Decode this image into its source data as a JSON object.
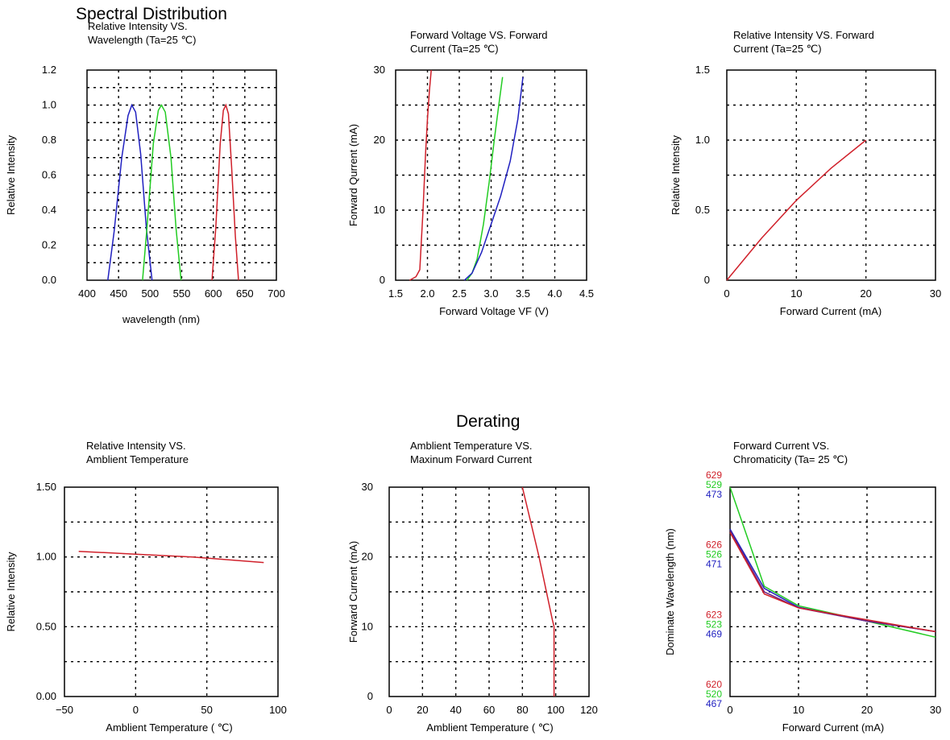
{
  "sections": {
    "spectral": "Spectral Distribution",
    "derating": "Derating"
  },
  "colors": {
    "red": "#d0202a",
    "green": "#22cc22",
    "blue": "#2020c0",
    "purple": "#6a2080",
    "axis": "#000000"
  },
  "chart_data": [
    {
      "type": "line",
      "title_lines": [
        "Relative Intensity VS.",
        "Wavelength (Ta=25 ℃)"
      ],
      "xlabel": "wavelength (nm)",
      "ylabel": "Relative Intensity",
      "xlim": [
        400,
        700
      ],
      "ylim": [
        0,
        1.2
      ],
      "xticks": [
        400,
        450,
        500,
        550,
        600,
        650,
        700
      ],
      "xtick_labels": [
        "400",
        "450",
        "500",
        "550",
        "600",
        "650",
        "700"
      ],
      "yticks": [
        0,
        0.2,
        0.4,
        0.6,
        0.8,
        1.0,
        1.2
      ],
      "ytick_labels": [
        "0.0",
        "0.2",
        "0.4",
        "0.6",
        "0.8",
        "1.0",
        "1.2"
      ],
      "grid": true,
      "series": [
        {
          "color": "blue",
          "x": [
            433,
            443,
            455,
            465,
            471,
            477,
            485,
            494,
            503
          ],
          "y": [
            0,
            0.28,
            0.7,
            0.94,
            1.0,
            0.96,
            0.72,
            0.3,
            0
          ]
        },
        {
          "color": "green",
          "x": [
            488,
            495,
            505,
            513,
            518,
            524,
            533,
            541,
            549
          ],
          "y": [
            0,
            0.3,
            0.78,
            0.97,
            1.0,
            0.96,
            0.7,
            0.3,
            0
          ]
        },
        {
          "color": "red",
          "x": [
            598,
            604,
            611,
            616,
            620,
            624,
            629,
            635,
            640
          ],
          "y": [
            0,
            0.3,
            0.78,
            0.97,
            1.0,
            0.95,
            0.65,
            0.25,
            0
          ]
        }
      ]
    },
    {
      "type": "line",
      "title_lines": [
        "Forward Voltage VS. Forward",
        "Current (Ta=25 ℃)"
      ],
      "xlabel": "Forward Voltage VF (V)",
      "ylabel": "Forward Qurrent (mA)",
      "xlim": [
        1.5,
        4.5
      ],
      "ylim": [
        0,
        30
      ],
      "xticks": [
        1.5,
        2.0,
        2.5,
        3.0,
        3.5,
        4.0,
        4.5
      ],
      "xtick_labels": [
        "1.5",
        "2.0",
        "2.5",
        "3.0",
        "3.5",
        "4.0",
        "4.5"
      ],
      "yticks": [
        0,
        10,
        20,
        30
      ],
      "ytick_labels": [
        "0",
        "10",
        "20",
        "30"
      ],
      "grid": true,
      "series": [
        {
          "color": "red",
          "x": [
            1.72,
            1.82,
            1.88,
            1.93,
            1.97,
            2.0,
            2.03,
            2.06
          ],
          "y": [
            0,
            0.5,
            1.5,
            10,
            18,
            23,
            27,
            30
          ]
        },
        {
          "color": "green",
          "x": [
            2.62,
            2.7,
            2.78,
            2.88,
            2.97,
            3.05,
            3.12,
            3.18
          ],
          "y": [
            0,
            1,
            3,
            8,
            14,
            20,
            25,
            29
          ]
        },
        {
          "color": "blue",
          "x": [
            2.58,
            2.7,
            2.85,
            3.0,
            3.15,
            3.3,
            3.42,
            3.5
          ],
          "y": [
            0,
            1,
            4,
            8,
            12,
            17,
            23,
            29
          ]
        }
      ]
    },
    {
      "type": "line",
      "title_lines": [
        "Relative Intensity VS. Forward",
        "Current (Ta=25 ℃)"
      ],
      "xlabel": "Forward Current (mA)",
      "ylabel": "Relative Intensity",
      "xlim": [
        0,
        30
      ],
      "ylim": [
        0,
        1.5
      ],
      "xticks": [
        0,
        10,
        20,
        30
      ],
      "xtick_labels": [
        "0",
        "10",
        "20",
        "30"
      ],
      "yticks": [
        0,
        0.5,
        1.0,
        1.5
      ],
      "ytick_labels": [
        "0",
        "0.5",
        "1.0",
        "1.5"
      ],
      "grid": true,
      "series": [
        {
          "color": "red",
          "x": [
            0,
            5,
            10,
            15,
            20
          ],
          "y": [
            0,
            0.3,
            0.57,
            0.8,
            1.0
          ]
        }
      ]
    },
    {
      "type": "line",
      "title_lines": [
        "Relative Intensity VS.",
        "Amblient Temperature"
      ],
      "xlabel": "Amblient Temperature ( ℃)",
      "ylabel": "Relative Intensity",
      "xlim": [
        -50,
        100
      ],
      "ylim": [
        0,
        1.5
      ],
      "xticks": [
        -50,
        0,
        50,
        100
      ],
      "xtick_labels": [
        "−50",
        "0",
        "50",
        "100"
      ],
      "yticks": [
        0,
        0.5,
        1.0,
        1.5
      ],
      "ytick_labels": [
        "0.00",
        "0.50",
        "1.00",
        "1.50"
      ],
      "grid": true,
      "series": [
        {
          "color": "red",
          "x": [
            -40,
            0,
            40,
            90
          ],
          "y": [
            1.04,
            1.02,
            1.0,
            0.96
          ]
        }
      ]
    },
    {
      "type": "line",
      "title_lines": [
        "Amblient Temperature VS.",
        "Maxinum Forward Current"
      ],
      "xlabel": "Amblient Temperature ( ℃)",
      "ylabel": "Forward Current (mA)",
      "xlim": [
        0,
        120
      ],
      "ylim": [
        0,
        30
      ],
      "xticks": [
        0,
        20,
        40,
        60,
        80,
        100,
        120
      ],
      "xtick_labels": [
        "0",
        "20",
        "40",
        "60",
        "80",
        "100",
        "120"
      ],
      "yticks": [
        0,
        10,
        20,
        30
      ],
      "ytick_labels": [
        "0",
        "10",
        "20",
        "30"
      ],
      "grid": true,
      "series": [
        {
          "color": "red",
          "x": [
            80,
            90,
            98,
            99,
            99
          ],
          "y": [
            30,
            20,
            11,
            10,
            0
          ]
        }
      ]
    },
    {
      "type": "line",
      "title_lines": [
        "Forward Current VS.",
        "Chromaticity (Ta= 25 ℃)"
      ],
      "xlabel": "Forward Current (mA)",
      "ylabel": "Dominate Wavelength (nm)",
      "xlim": [
        0,
        30
      ],
      "ylim": [
        0,
        3
      ],
      "xticks": [
        0,
        10,
        20,
        30
      ],
      "xtick_labels": [
        "0",
        "10",
        "20",
        "30"
      ],
      "yticks": [
        0,
        1,
        2,
        3
      ],
      "ytick_label_groups": [
        {
          "red": "620",
          "green": "520",
          "blue": "467"
        },
        {
          "red": "623",
          "green": "523",
          "blue": "469"
        },
        {
          "red": "626",
          "green": "526",
          "blue": "471"
        },
        {
          "red": "629",
          "green": "529",
          "blue": "473"
        }
      ],
      "grid": true,
      "series": [
        {
          "color": "green",
          "x": [
            0,
            5,
            10,
            20,
            30
          ],
          "y": [
            3.0,
            1.58,
            1.3,
            1.08,
            0.85
          ]
        },
        {
          "color": "blue",
          "x": [
            0,
            5,
            10,
            20,
            30
          ],
          "y": [
            2.4,
            1.55,
            1.28,
            1.08,
            0.93
          ]
        },
        {
          "color": "purple",
          "x": [
            0,
            5,
            10,
            20,
            30
          ],
          "y": [
            2.38,
            1.5,
            1.27,
            1.08,
            0.93
          ]
        },
        {
          "color": "red",
          "x": [
            0,
            5,
            10,
            20,
            30
          ],
          "y": [
            2.35,
            1.47,
            1.27,
            1.1,
            0.93
          ]
        }
      ]
    }
  ]
}
